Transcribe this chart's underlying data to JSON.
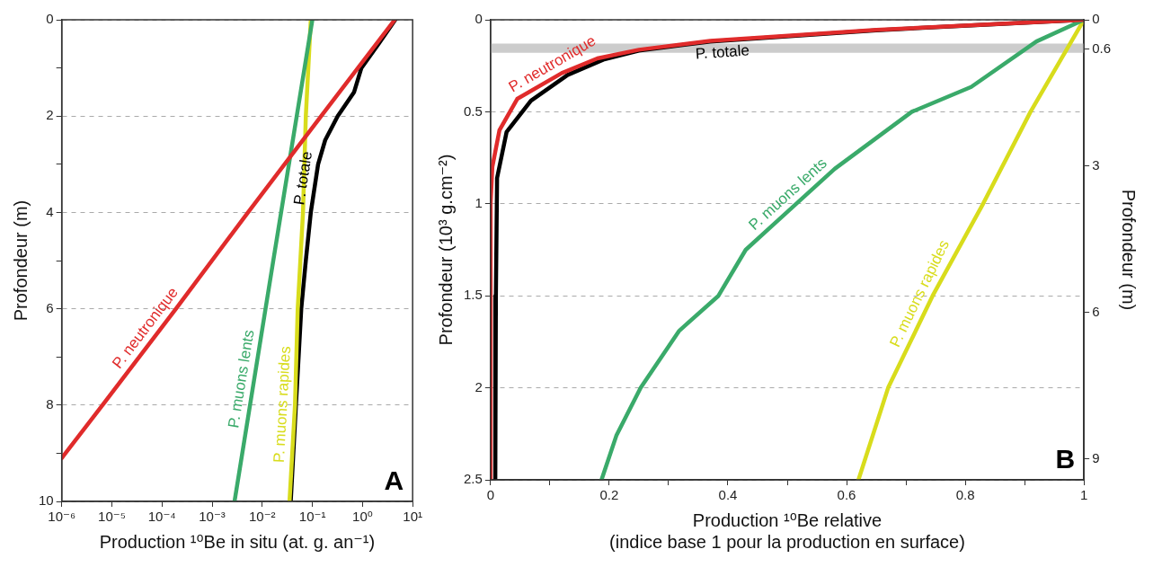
{
  "chart_data": [
    {
      "type": "line",
      "xlabel": "Production ¹⁰Be in situ (at. g. an⁻¹)",
      "ylabel": "Profondeur (m)",
      "log": "x",
      "xlim": [
        1e-06,
        10
      ],
      "xticks": [
        {
          "value": 1e-06,
          "label": "10⁻⁶"
        },
        {
          "value": 1e-05,
          "label": "10⁻⁵"
        },
        {
          "value": 0.0001,
          "label": "10⁻⁴"
        },
        {
          "value": 0.001,
          "label": "10⁻³"
        },
        {
          "value": 0.01,
          "label": "10⁻²"
        },
        {
          "value": 0.1,
          "label": "10⁻¹"
        },
        {
          "value": 1,
          "label": "10⁰"
        },
        {
          "value": 10,
          "label": "10¹"
        }
      ],
      "ylim": [
        10,
        0
      ],
      "yticks": [
        0,
        {
          "value": 1,
          "label": null
        },
        2,
        {
          "value": 3,
          "label": null
        },
        4,
        {
          "value": 5,
          "label": null
        },
        6,
        {
          "value": 7,
          "label": null
        },
        8,
        {
          "value": 9,
          "label": null
        },
        10
      ],
      "grid": "y",
      "annotations": [
        "A"
      ],
      "series": [
        {
          "name": "P. neutronique",
          "color": "#e02b2b",
          "x": [
            4.4,
            0.15,
            0.0052,
            0.00019,
            6.5e-06,
            1e-06
          ],
          "values": [
            0,
            2,
            4,
            6,
            8,
            9.1
          ]
        },
        {
          "name": "P. muons lents",
          "color": "#3aaa6a",
          "x": [
            0.1,
            0.0166,
            0.0028
          ],
          "values": [
            0,
            5,
            10
          ]
        },
        {
          "name": "P. muons rapides",
          "color": "#d8dc1c",
          "x": [
            0.093,
            0.074,
            0.065,
            0.051,
            0.045,
            0.035
          ],
          "values": [
            0,
            2,
            4,
            6,
            8,
            10
          ]
        },
        {
          "name": "P. totale",
          "color": "#000000",
          "x": [
            4.5,
            2.1,
            0.95,
            0.68,
            0.32,
            0.18,
            0.13,
            0.093,
            0.074,
            0.06,
            0.047,
            0.037
          ],
          "values": [
            0,
            0.5,
            1,
            1.5,
            2,
            2.5,
            3,
            4,
            5,
            6,
            8,
            10
          ]
        }
      ]
    },
    {
      "type": "line",
      "xlabel": "Production ¹⁰Be relative\n(indice base 1 pour la production en surface)",
      "ylabel": "Profondeur (10³ g.cm⁻²)",
      "y2label": "Profondeur (m)",
      "xlim": [
        0,
        1
      ],
      "xticks": [
        0,
        {
          "value": 0.1,
          "label": null
        },
        0.2,
        {
          "value": 0.3,
          "label": null
        },
        0.4,
        {
          "value": 0.5,
          "label": null
        },
        0.6,
        {
          "value": 0.7,
          "label": null
        },
        0.8,
        {
          "value": 0.9,
          "label": null
        },
        1
      ],
      "ylim": [
        2.5,
        0
      ],
      "yticks": [
        0,
        0.5,
        1,
        1.5,
        2,
        2.5
      ],
      "y2lim": [
        9.43,
        0
      ],
      "y2ticks": [
        0,
        0.6,
        3,
        6,
        9
      ],
      "grid": "y",
      "bands": [
        {
          "axis": "y",
          "from": 0.13,
          "to": 0.18,
          "color": "#cccccc"
        }
      ],
      "annotations": [
        "B"
      ],
      "series": [
        {
          "name": "P. neutronique",
          "color": "#e02b2b",
          "x": [
            1,
            0.65,
            0.37,
            0.25,
            0.18,
            0.12,
            0.045,
            0.015,
            0.003,
            0,
            0
          ],
          "values": [
            0,
            0.055,
            0.115,
            0.163,
            0.21,
            0.29,
            0.43,
            0.6,
            0.8,
            1,
            2.5
          ]
        },
        {
          "name": "P. muons lents",
          "color": "#3aaa6a",
          "x": [
            1,
            0.92,
            0.81,
            0.71,
            0.58,
            0.515,
            0.43,
            0.384,
            0.318,
            0.253,
            0.212,
            0.187
          ],
          "values": [
            0,
            0.118,
            0.365,
            0.5,
            0.81,
            1,
            1.25,
            1.5,
            1.69,
            2,
            2.26,
            2.5
          ]
        },
        {
          "name": "P. muons rapides",
          "color": "#d8dc1c",
          "x": [
            1,
            0.91,
            0.83,
            0.745,
            0.67,
            0.62
          ],
          "values": [
            0,
            0.5,
            1,
            1.5,
            2,
            2.5
          ]
        },
        {
          "name": "P. totale",
          "color": "#000000",
          "x": [
            1,
            0.65,
            0.37,
            0.25,
            0.19,
            0.13,
            0.068,
            0.027,
            0.011,
            0.009,
            0.008
          ],
          "values": [
            0,
            0.057,
            0.118,
            0.167,
            0.217,
            0.3,
            0.44,
            0.61,
            0.86,
            1.5,
            2.5
          ]
        }
      ]
    }
  ]
}
